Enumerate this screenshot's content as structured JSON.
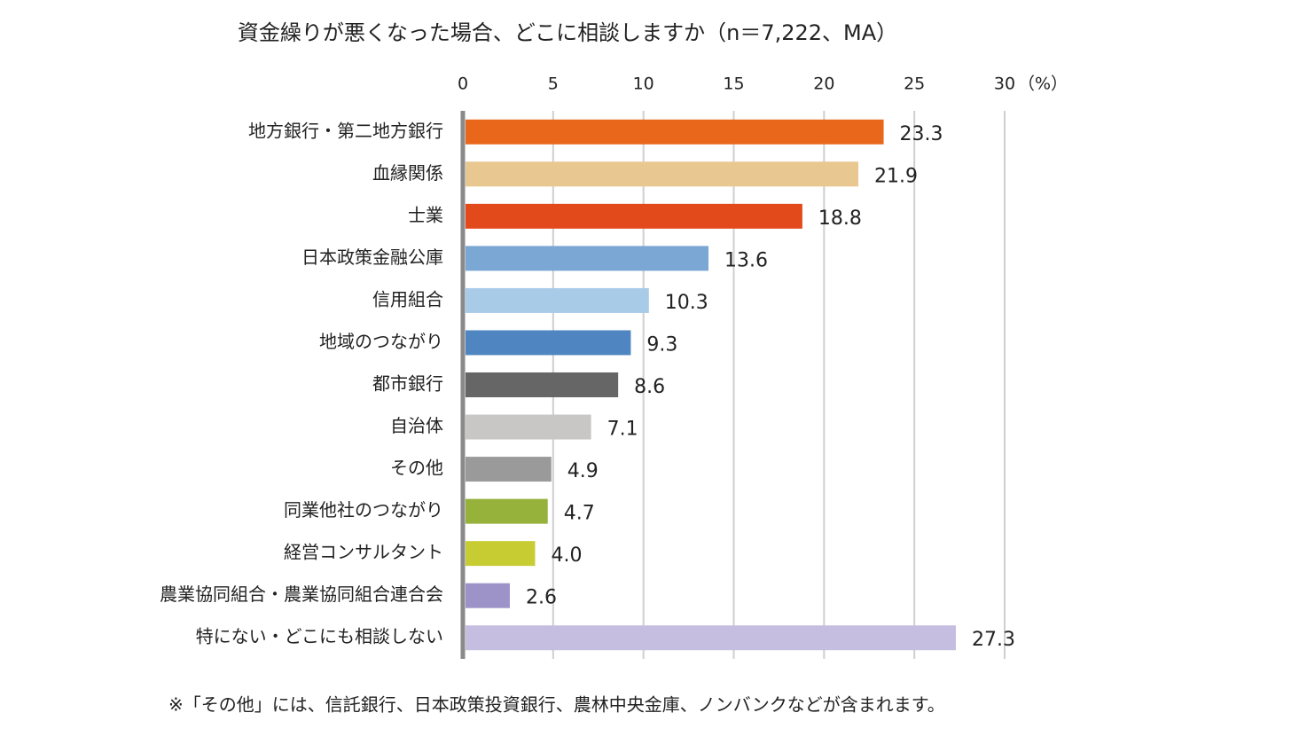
{
  "chart_data": {
    "type": "bar",
    "orientation": "horizontal",
    "title": "資金繰りが悪くなった場合、どこに相談しますか（n＝7,222、MA）",
    "xlabel": "（%）",
    "categories": [
      "地方銀行・第二地方銀行",
      "血縁関係",
      "士業",
      "日本政策金融公庫",
      "信用組合",
      "地域のつながり",
      "都市銀行",
      "自治体",
      "その他",
      "同業他社のつながり",
      "経営コンサルタント",
      "農業協同組合・農業協同組合連合会",
      "特にない・どこにも相談しない"
    ],
    "values": [
      23.3,
      21.9,
      18.8,
      13.6,
      10.3,
      9.3,
      8.6,
      7.1,
      4.9,
      4.7,
      4.0,
      2.6,
      27.3
    ],
    "value_labels": [
      "23.3",
      "21.9",
      "18.8",
      "13.6",
      "10.3",
      "9.3",
      "8.6",
      "7.1",
      "4.9",
      "4.7",
      "4.0",
      "2.6",
      "27.3"
    ],
    "colors": [
      "#e8671a",
      "#e8c890",
      "#e34a1b",
      "#7aa7d4",
      "#a8cbe8",
      "#4f86c1",
      "#666666",
      "#c9c6c6",
      "#9a9a9a",
      "#97b23b",
      "#c8cc33",
      "#9d93c8",
      "#c6bee0"
    ],
    "xlim": [
      0,
      30
    ],
    "xticks": [
      0,
      5,
      10,
      15,
      20,
      25,
      30
    ],
    "grid": true,
    "note": "※「その他」には、信託銀行、日本政策投資銀行、農林中央金庫、ノンバンクなどが含まれます。"
  }
}
